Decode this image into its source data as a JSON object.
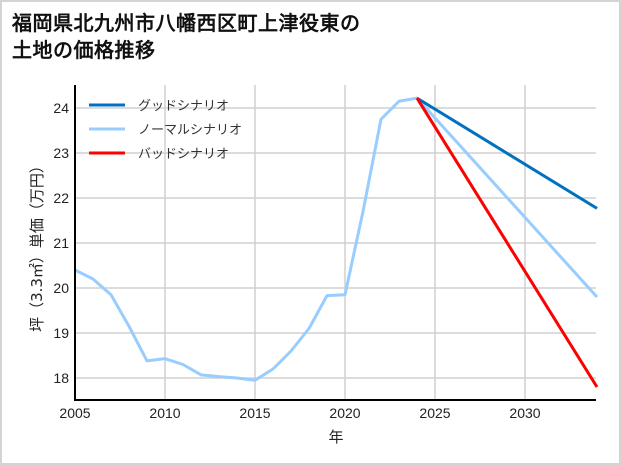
{
  "title_line1": "福岡県北九州市八幡西区町上津役東の",
  "title_line2": "土地の価格推移",
  "chart_data": {
    "type": "line",
    "title": "福岡県北九州市八幡西区町上津役東の土地の価格推移",
    "xlabel": "年",
    "ylabel": "坪（3.3㎡）単価（万円）",
    "xlim": [
      2005,
      2034
    ],
    "ylim": [
      17.5,
      24.5
    ],
    "xticks": [
      2005,
      2010,
      2015,
      2020,
      2025,
      2030
    ],
    "yticks": [
      18,
      19,
      20,
      21,
      22,
      23,
      24
    ],
    "grid": true,
    "legend_position": "upper left",
    "series": [
      {
        "name": "グッドシナリオ",
        "color": "#0070c0",
        "x": [
          2024,
          2034
        ],
        "values": [
          24.22,
          21.77
        ]
      },
      {
        "name": "ノーマルシナリオ",
        "color": "#99ccff",
        "x": [
          2005,
          2006,
          2007,
          2008,
          2009,
          2010,
          2011,
          2012,
          2013,
          2014,
          2015,
          2016,
          2017,
          2018,
          2019,
          2020,
          2021,
          2022,
          2023,
          2024,
          2034
        ],
        "values": [
          20.4,
          20.2,
          19.85,
          19.15,
          18.38,
          18.43,
          18.3,
          18.07,
          18.03,
          18.0,
          17.95,
          18.2,
          18.6,
          19.1,
          19.83,
          19.85,
          21.7,
          23.75,
          24.15,
          24.22,
          19.8
        ]
      },
      {
        "name": "バッドシナリオ",
        "color": "#ff0000",
        "x": [
          2024,
          2034
        ],
        "values": [
          24.22,
          17.8
        ]
      }
    ]
  }
}
